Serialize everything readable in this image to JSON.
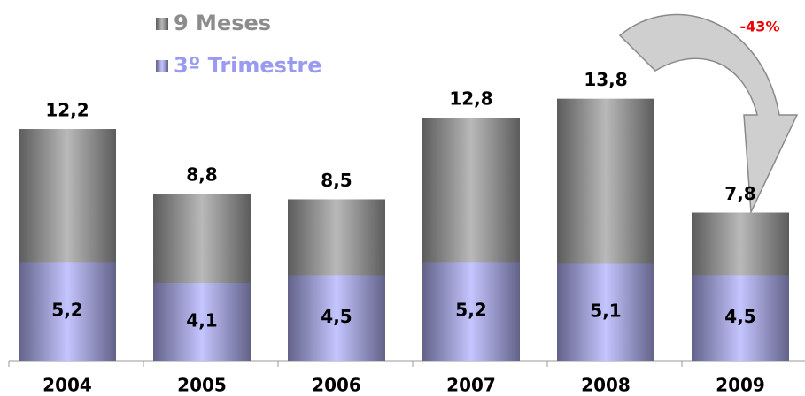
{
  "chart_data": {
    "type": "bar",
    "categories": [
      "2004",
      "2005",
      "2006",
      "2007",
      "2008",
      "2009"
    ],
    "series": [
      {
        "name": "9 Meses",
        "color": "#9a9a9a",
        "values": [
          12.2,
          8.8,
          8.5,
          12.8,
          13.8,
          7.8
        ],
        "value_labels": [
          "12,2",
          "8,8",
          "8,5",
          "12,8",
          "13,8",
          "7,8"
        ]
      },
      {
        "name": "3º Trimestre",
        "color": "#a4a4e4",
        "values": [
          5.2,
          4.1,
          4.5,
          5.2,
          5.1,
          4.5
        ],
        "value_labels": [
          "5,2",
          "4,1",
          "4,5",
          "5,2",
          "5,1",
          "4,5"
        ]
      }
    ],
    "ylim": [
      0,
      19
    ],
    "annotation": "-43%"
  }
}
